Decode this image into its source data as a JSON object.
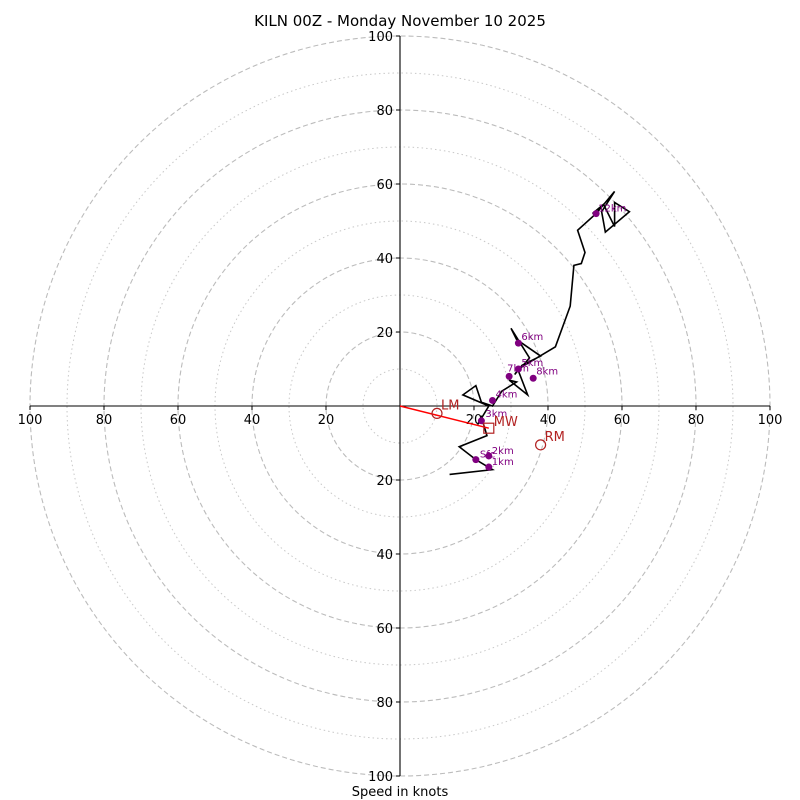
{
  "chart_data": {
    "type": "hodograph",
    "title": "KILN 00Z - Monday November 10 2025",
    "xlabel": "Speed in knots",
    "ylabel": "",
    "xlim": [
      -100,
      100
    ],
    "ylim": [
      -100,
      100
    ],
    "rings_major": [
      20,
      40,
      60,
      80,
      100
    ],
    "rings_minor": [
      10,
      30,
      50,
      70,
      90
    ],
    "x_tick_labels": [
      "100",
      "80",
      "60",
      "40",
      "20",
      "20",
      "40",
      "60",
      "80",
      "100"
    ],
    "x_tick_values": [
      -100,
      -80,
      -60,
      -40,
      -20,
      20,
      40,
      60,
      80,
      100
    ],
    "y_tick_labels": [
      "100",
      "80",
      "60",
      "40",
      "20",
      "20",
      "40",
      "60",
      "80",
      "100"
    ],
    "y_tick_values": [
      100,
      80,
      60,
      40,
      20,
      -20,
      -40,
      -60,
      -80,
      -100
    ],
    "grid": true,
    "hodograph": {
      "color": "#000000",
      "u": [
        13.4,
        25.0,
        20.5,
        16.0,
        23.5,
        22.0,
        21.0,
        24.0,
        17.0,
        20.5,
        22.0,
        25.0,
        27.5,
        31.5,
        29.5,
        34.5,
        32.0,
        35.0,
        30.0,
        31.5,
        38.0,
        33.0,
        31.0,
        32.0,
        42.0,
        46.0,
        47.0,
        49.0,
        50.0,
        48.0,
        53.0,
        58.0,
        54.5,
        55.5,
        62.0,
        58.0,
        58.0,
        55.0,
        52.0
      ],
      "v": [
        -18.5,
        -17.2,
        -14.5,
        -11.0,
        -8.0,
        -3.0,
        -5.0,
        0.0,
        3.0,
        5.5,
        1.0,
        0.0,
        4.0,
        6.5,
        7.0,
        3.0,
        9.5,
        13.0,
        21.0,
        18.0,
        13.5,
        11.0,
        8.5,
        10.0,
        16.0,
        27.0,
        38.0,
        38.5,
        41.5,
        47.5,
        52.0,
        58.0,
        52.5,
        47.0,
        52.5,
        55.0,
        48.5,
        54.5,
        52.0
      ]
    },
    "height_markers": {
      "color": "#800080",
      "points": [
        {
          "label": "1km",
          "u": 24.0,
          "v": -16.5
        },
        {
          "label": "2km",
          "u": 24.0,
          "v": -13.5
        },
        {
          "label": "Sfc",
          "u": 20.5,
          "v": -14.5
        },
        {
          "label": "3km",
          "u": 22.0,
          "v": -4.0
        },
        {
          "label": "4km",
          "u": 25.0,
          "v": 1.5
        },
        {
          "label": "5km",
          "u": 32.0,
          "v": 10.0
        },
        {
          "label": "7km",
          "u": 29.5,
          "v": 8.0
        },
        {
          "label": "8km",
          "u": 36.0,
          "v": 7.5
        },
        {
          "label": "6km",
          "u": 32.0,
          "v": 17.0
        },
        {
          "label": "12km",
          "u": 53.0,
          "v": 52.0
        }
      ]
    },
    "storm_motion": {
      "color": "#b22222",
      "bunkers_right": {
        "label": "RM",
        "u": 38.0,
        "v": -10.5
      },
      "bunkers_left": {
        "label": "LM",
        "u": 10.0,
        "v": -2.0
      },
      "mean_wind": {
        "label": "MW",
        "u": 24.0,
        "v": -6.0
      },
      "shear_vector_color": "#ff0000"
    }
  }
}
